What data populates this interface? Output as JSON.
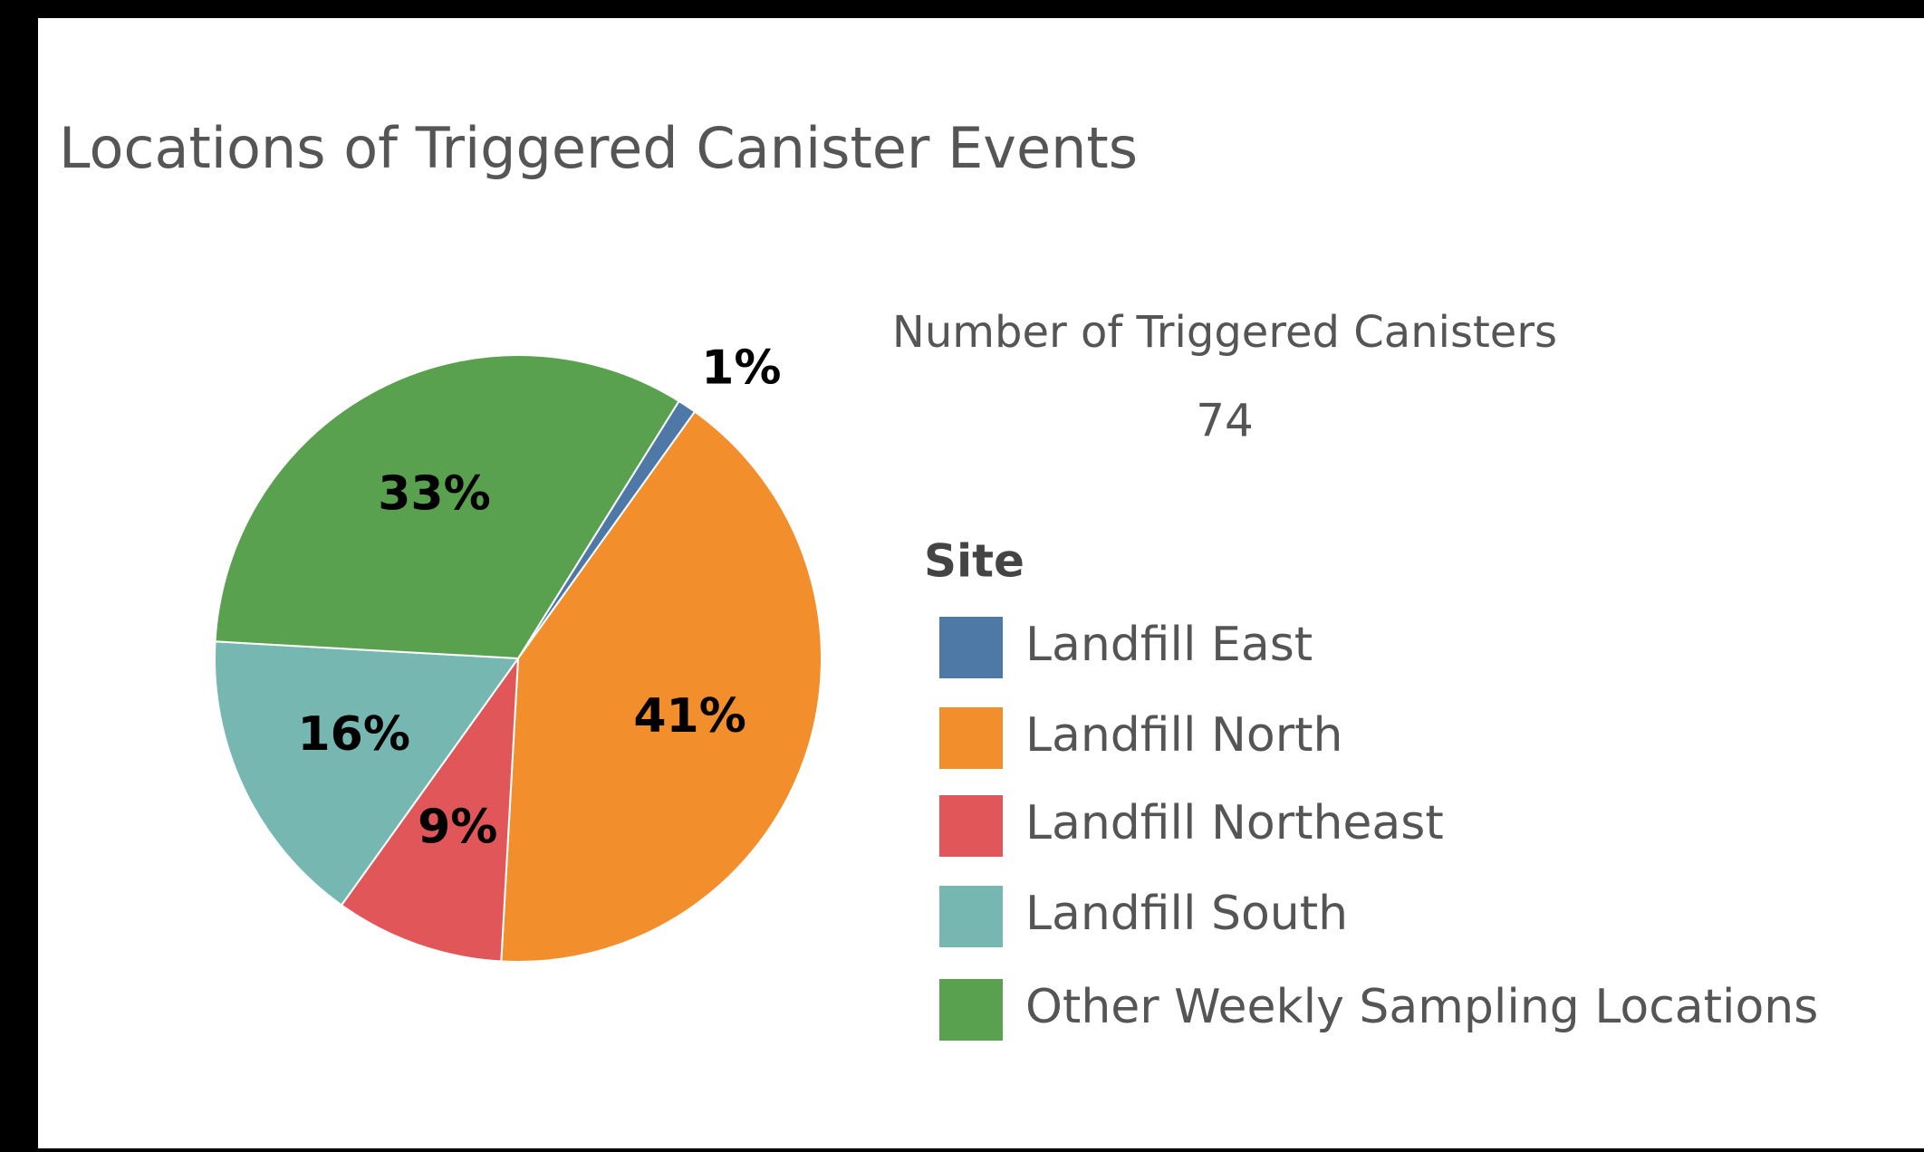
{
  "chart_data": {
    "type": "pie",
    "title": "Locations of Triggered Canister Events",
    "categories": [
      "Landfill East",
      "Landfill North",
      "Landfill Northeast",
      "Landfill South",
      "Other Weekly Sampling Locations"
    ],
    "values": [
      1,
      41,
      9,
      16,
      33
    ],
    "value_labels": [
      "1%",
      "41%",
      "9%",
      "16%",
      "33%"
    ],
    "colors": [
      "#4e79a7",
      "#f28e2b",
      "#e15759",
      "#76b7b2",
      "#59a14f"
    ],
    "legend_title": "Site",
    "kpi_label": "Number of Triggered Canisters",
    "kpi_value": 74
  }
}
